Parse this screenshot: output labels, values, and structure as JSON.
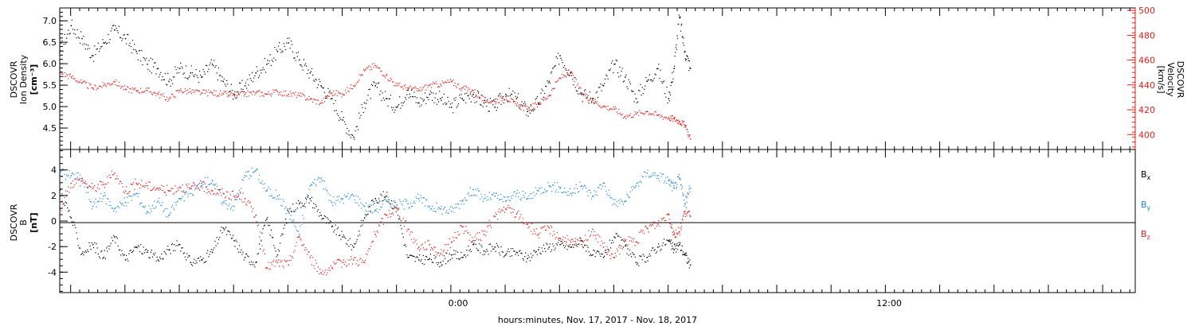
{
  "colors": {
    "black": "#000000",
    "red": "#e0201a",
    "blue": "#1f86db",
    "axis": "#000000"
  },
  "xlabel": "hours:minutes, Nov. 17, 2017 - Nov. 18, 2017",
  "x_tick_labels": [
    "0:00",
    "12:00"
  ],
  "chart_data": [
    {
      "type": "scatter",
      "panel": "top",
      "ylabel_left": [
        "DSCOVR",
        "Ion Density",
        "[cm⁻³]"
      ],
      "ylabel_right": [
        "DSCOVR",
        "Velocity",
        "[km/s]"
      ],
      "x_unit": "hours relative to Nov. 18, 2017 0:00",
      "xlim": [
        -21.6,
        37.8
      ],
      "ylim_left": [
        4.0,
        7.3
      ],
      "ylim_right": [
        388,
        502
      ],
      "y_ticks_left": [
        "4.5",
        "5.0",
        "5.5",
        "6.0",
        "6.5",
        "7.0"
      ],
      "y_ticks_right": [
        "400",
        "420",
        "440",
        "460",
        "480",
        "500"
      ],
      "series": [
        {
          "axis": "left",
          "color": "black",
          "x": [
            -21.6,
            -21.0,
            -20.4,
            -19.8,
            -19.2,
            -18.6,
            -18.0,
            -17.4,
            -16.8,
            -16.2,
            -15.6,
            -15.0,
            -14.4,
            -13.8,
            -13.2,
            -12.6,
            -12.0,
            -11.4,
            -10.8,
            -10.2,
            -9.6,
            -9.0,
            -8.4,
            -7.8,
            -7.2,
            -6.6,
            -6.0,
            -5.4,
            -4.8,
            -4.2,
            -3.6,
            -3.0,
            -2.4,
            -1.8,
            -1.2,
            -0.6,
            0.0,
            0.6,
            1.2,
            1.8,
            2.4,
            3.0,
            3.6,
            4.2,
            4.8,
            5.4,
            6.0,
            6.6,
            7.2,
            7.8,
            8.4,
            9.0,
            9.6,
            10.2,
            10.8,
            11.4,
            12.0,
            12.3,
            12.6,
            12.9,
            13.2
          ],
          "y": [
            6.3,
            6.9,
            6.6,
            6.2,
            6.5,
            6.8,
            6.6,
            6.3,
            6.0,
            5.9,
            5.6,
            5.9,
            5.8,
            5.7,
            6.0,
            5.6,
            5.3,
            5.5,
            5.8,
            6.0,
            6.3,
            6.5,
            6.1,
            5.8,
            5.5,
            5.2,
            4.7,
            4.3,
            5.1,
            5.5,
            5.2,
            5.0,
            5.4,
            5.1,
            5.3,
            5.2,
            5.0,
            5.2,
            5.3,
            5.1,
            5.0,
            5.3,
            5.2,
            4.9,
            5.1,
            5.6,
            6.2,
            5.8,
            5.3,
            5.2,
            5.5,
            6.0,
            5.7,
            5.2,
            5.6,
            5.9,
            5.2,
            5.9,
            7.1,
            6.3,
            5.9
          ]
        },
        {
          "axis": "right",
          "color": "red",
          "x": [
            -21.6,
            -21.0,
            -20.4,
            -19.8,
            -19.2,
            -18.6,
            -18.0,
            -17.4,
            -16.8,
            -16.2,
            -15.6,
            -15.0,
            -14.4,
            -13.8,
            -13.2,
            -12.6,
            -12.0,
            -11.4,
            -10.8,
            -10.2,
            -9.6,
            -9.0,
            -8.4,
            -7.8,
            -7.2,
            -6.6,
            -6.0,
            -5.4,
            -4.8,
            -4.2,
            -3.6,
            -3.0,
            -2.4,
            -1.8,
            -1.2,
            -0.6,
            0.0,
            0.6,
            1.2,
            1.8,
            2.4,
            3.0,
            3.6,
            4.2,
            4.8,
            5.4,
            6.0,
            6.6,
            7.2,
            7.8,
            8.4,
            9.0,
            9.6,
            10.2,
            10.8,
            11.4,
            12.0,
            12.3,
            12.6,
            12.9,
            13.2
          ],
          "y": [
            450,
            447,
            442,
            438,
            440,
            443,
            437,
            436,
            436,
            433,
            429,
            436,
            435,
            434,
            434,
            433,
            432,
            433,
            434,
            433,
            435,
            433,
            432,
            429,
            426,
            434,
            433,
            440,
            452,
            456,
            448,
            440,
            438,
            436,
            440,
            441,
            443,
            438,
            436,
            428,
            427,
            431,
            424,
            421,
            425,
            432,
            446,
            451,
            434,
            428,
            423,
            421,
            415,
            417,
            419,
            416,
            414,
            413,
            411,
            408,
            397
          ]
        }
      ]
    },
    {
      "type": "scatter",
      "panel": "bottom",
      "ylabel_left": [
        "DSCOVR",
        "B",
        "[nT]"
      ],
      "x_unit": "hours relative to Nov. 18, 2017 0:00",
      "xlim": [
        -21.6,
        37.8
      ],
      "ylim": [
        -5.6,
        5.6
      ],
      "y_ticks": [
        "-4",
        "-2",
        "0",
        "2",
        "4"
      ],
      "zero_line": true,
      "legend": [
        {
          "label": "B",
          "sub": "x",
          "color": "black"
        },
        {
          "label": "B",
          "sub": "y",
          "color": "blue"
        },
        {
          "label": "B",
          "sub": "z",
          "color": "red"
        }
      ],
      "series": [
        {
          "name": "Bx",
          "color": "black",
          "x": [
            -21.6,
            -21.0,
            -20.4,
            -19.8,
            -19.2,
            -18.6,
            -18.0,
            -17.4,
            -16.8,
            -16.2,
            -15.6,
            -15.0,
            -14.4,
            -13.8,
            -13.2,
            -12.6,
            -12.0,
            -11.4,
            -10.8,
            -10.2,
            -9.6,
            -9.0,
            -8.4,
            -7.8,
            -7.2,
            -6.6,
            -6.0,
            -5.4,
            -4.8,
            -4.2,
            -3.6,
            -3.0,
            -2.4,
            -1.8,
            -1.2,
            -0.6,
            0.0,
            0.6,
            1.2,
            1.8,
            2.4,
            3.0,
            3.6,
            4.2,
            4.8,
            5.4,
            6.0,
            6.6,
            7.2,
            7.8,
            8.4,
            9.0,
            9.6,
            10.2,
            10.8,
            11.4,
            12.0,
            12.3,
            12.6,
            12.9,
            13.2
          ],
          "y": [
            2.5,
            0.3,
            -2.5,
            -1.8,
            -2.8,
            -1.2,
            -3.0,
            -2.0,
            -2.4,
            -3.0,
            -2.2,
            -1.8,
            -3.2,
            -3.0,
            -2.4,
            -0.5,
            -1.5,
            -2.8,
            -3.2,
            0.2,
            -2.6,
            0.8,
            1.4,
            1.8,
            0.5,
            -0.4,
            -1.2,
            -2.0,
            0.3,
            1.8,
            2.0,
            1.0,
            -2.8,
            -3.0,
            -2.9,
            -3.2,
            -2.6,
            -2.8,
            -1.8,
            -2.3,
            -2.0,
            -2.6,
            -2.4,
            -2.9,
            -2.2,
            -2.0,
            -1.8,
            -2.0,
            -1.5,
            -2.6,
            -2.8,
            -1.2,
            -1.9,
            -3.2,
            -2.8,
            -2.0,
            -1.5,
            -2.2,
            -1.8,
            -2.6,
            -3.4
          ]
        },
        {
          "name": "By",
          "color": "blue",
          "x": [
            -21.6,
            -21.0,
            -20.4,
            -19.8,
            -19.2,
            -18.6,
            -18.0,
            -17.4,
            -16.8,
            -16.2,
            -15.6,
            -15.0,
            -14.4,
            -13.8,
            -13.2,
            -12.6,
            -12.0,
            -11.4,
            -10.8,
            -10.2,
            -9.6,
            -9.0,
            -8.4,
            -7.8,
            -7.2,
            -6.6,
            -6.0,
            -5.4,
            -4.8,
            -4.2,
            -3.6,
            -3.0,
            -2.4,
            -1.8,
            -1.2,
            -0.6,
            0.0,
            0.6,
            1.2,
            1.8,
            2.4,
            3.0,
            3.6,
            4.2,
            4.8,
            5.4,
            6.0,
            6.6,
            7.2,
            7.8,
            8.4,
            9.0,
            9.6,
            10.2,
            10.8,
            11.4,
            12.0,
            12.3,
            12.6,
            12.9,
            13.2
          ],
          "y": [
            3.8,
            3.6,
            3.4,
            1.2,
            2.0,
            1.0,
            1.5,
            2.2,
            0.8,
            1.6,
            0.5,
            1.8,
            2.2,
            3.0,
            3.2,
            1.5,
            1.2,
            3.6,
            4.0,
            2.4,
            2.0,
            0.8,
            -1.0,
            2.8,
            3.4,
            1.5,
            1.8,
            2.0,
            1.2,
            0.9,
            1.6,
            1.3,
            1.4,
            1.8,
            1.2,
            1.0,
            0.8,
            1.6,
            2.5,
            1.8,
            2.0,
            1.6,
            2.2,
            1.8,
            2.4,
            2.8,
            2.6,
            2.2,
            2.8,
            2.0,
            3.0,
            1.4,
            1.6,
            2.8,
            3.8,
            3.6,
            3.2,
            2.6,
            3.4,
            1.4,
            2.6
          ]
        },
        {
          "name": "Bz",
          "color": "red",
          "x": [
            -21.6,
            -21.0,
            -20.4,
            -19.8,
            -19.2,
            -18.6,
            -18.0,
            -17.4,
            -16.8,
            -16.2,
            -15.6,
            -15.0,
            -14.4,
            -13.8,
            -13.2,
            -12.6,
            -12.0,
            -11.4,
            -10.8,
            -10.2,
            -9.6,
            -9.0,
            -8.4,
            -7.8,
            -7.2,
            -6.6,
            -6.0,
            -5.4,
            -4.8,
            -4.2,
            -3.6,
            -3.0,
            -2.4,
            -1.8,
            -1.2,
            -0.6,
            0.0,
            0.6,
            1.2,
            1.8,
            2.4,
            3.0,
            3.6,
            4.2,
            4.8,
            5.4,
            6.0,
            6.6,
            7.2,
            7.8,
            8.4,
            9.0,
            9.6,
            10.2,
            10.8,
            11.4,
            12.0,
            12.3,
            12.6,
            12.9,
            13.2
          ],
          "y": [
            1.0,
            3.0,
            3.2,
            2.6,
            2.9,
            3.8,
            2.4,
            3.0,
            2.8,
            2.6,
            2.4,
            2.7,
            2.6,
            2.8,
            2.4,
            2.2,
            2.0,
            1.8,
            0.5,
            -3.6,
            -3.2,
            -3.4,
            -1.2,
            -2.8,
            -4.0,
            -3.6,
            -3.2,
            -3.0,
            -3.2,
            -1.0,
            0.5,
            1.0,
            -0.6,
            -2.0,
            -1.8,
            -2.5,
            -1.6,
            -0.4,
            -1.5,
            -1.0,
            0.4,
            1.0,
            0.6,
            -0.2,
            -1.0,
            -0.5,
            -1.3,
            -1.6,
            -1.8,
            -0.6,
            -2.0,
            -2.8,
            -1.5,
            -1.6,
            -0.5,
            -0.2,
            0.6,
            -1.0,
            -0.8,
            0.8,
            0.4
          ]
        }
      ]
    }
  ]
}
